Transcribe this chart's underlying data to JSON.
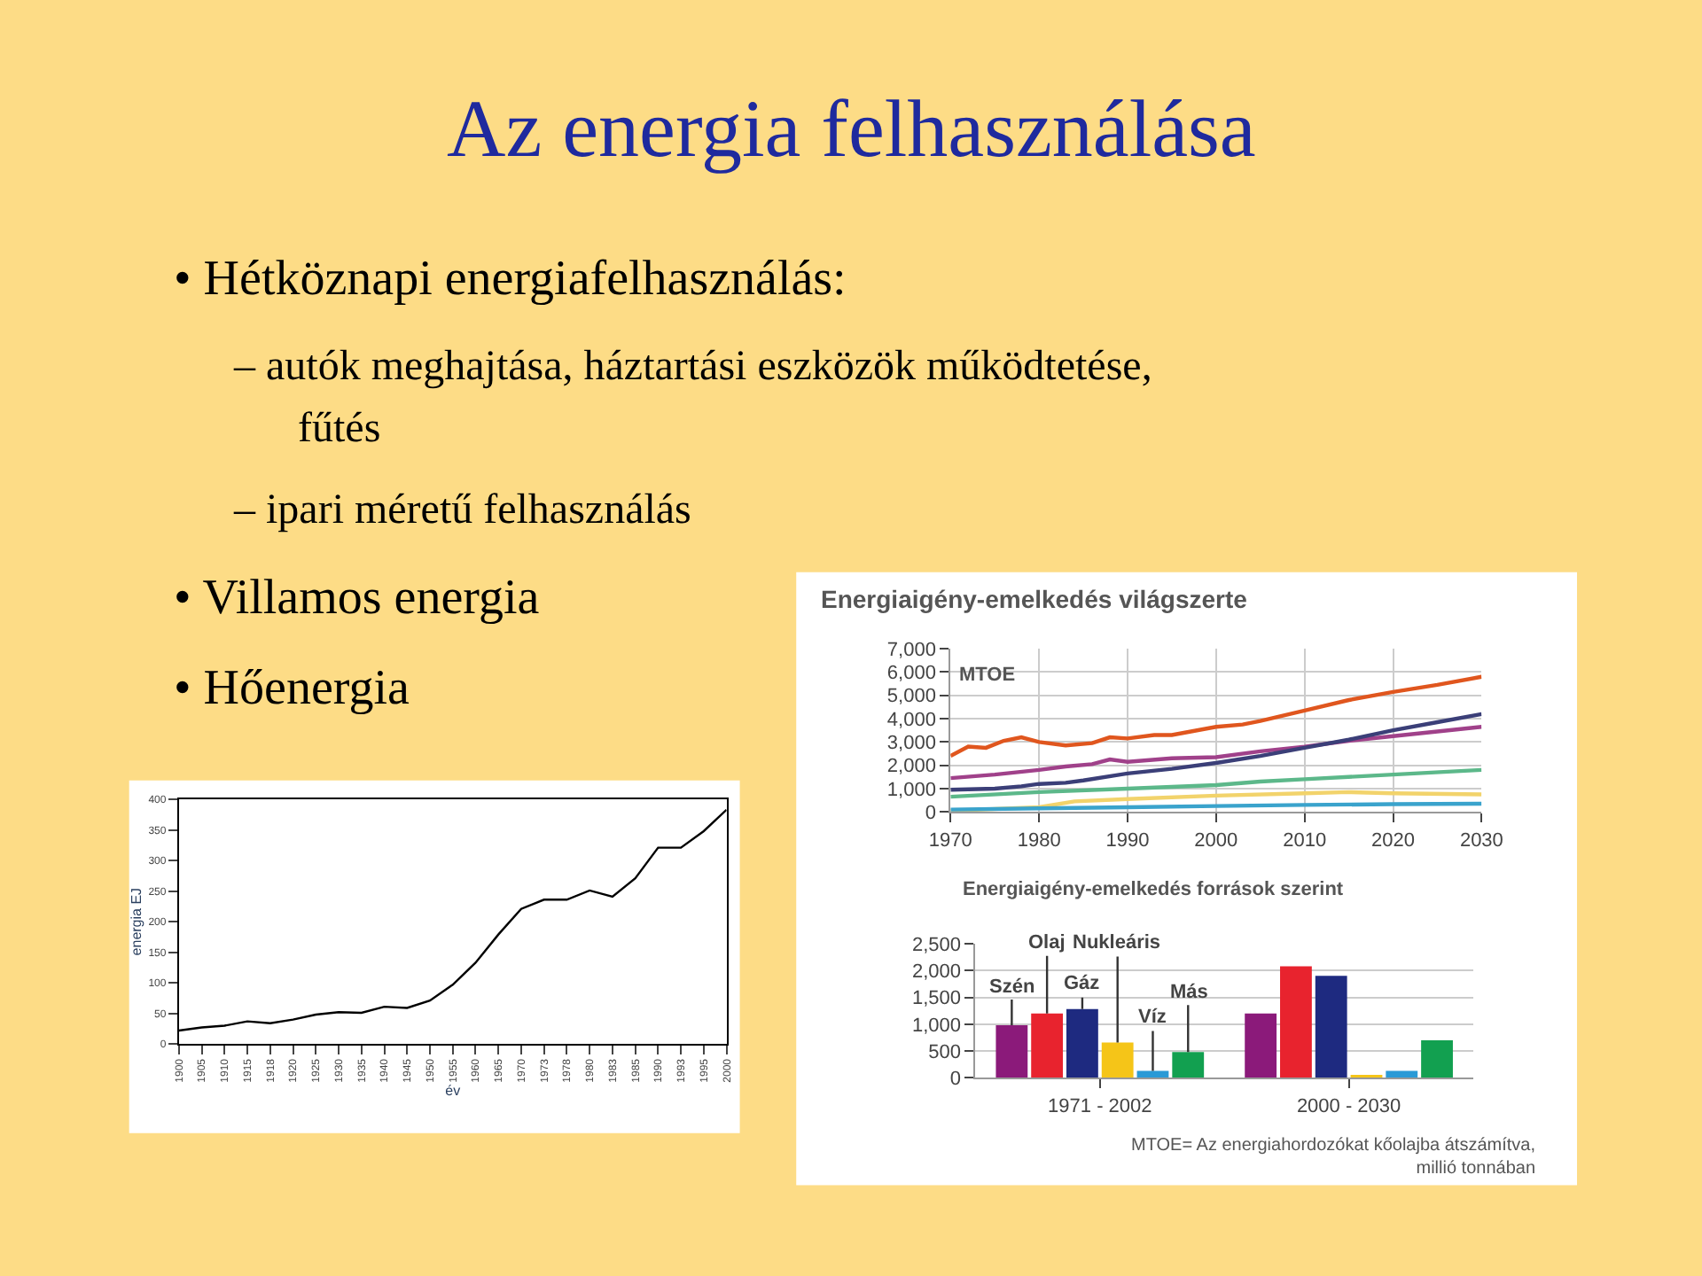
{
  "chart_data": [
    {
      "type": "other",
      "title": "Az energia felhasználása",
      "annotations": [
        "• Hétköznapi energiafelhasználás:",
        "– autók meghajtása, háztartási eszközök működtetése,",
        "fűtés",
        "– ipari méretű felhasználás",
        "• Villamos energia",
        "• Hőenergia"
      ]
    },
    {
      "type": "line",
      "xlabel": "év",
      "ylabel": "energia EJ",
      "categories": [
        "1900",
        "1905",
        "1910",
        "1915",
        "1918",
        "1920",
        "1925",
        "1930",
        "1935",
        "1940",
        "1945",
        "1950",
        "1955",
        "1960",
        "1965",
        "1970",
        "1973",
        "1978",
        "1980",
        "1983",
        "1985",
        "1990",
        "1993",
        "1995",
        "2000"
      ],
      "series": [
        {
          "color": "#000000",
          "values": [
            22,
            27,
            30,
            37,
            34,
            40,
            48,
            52,
            51,
            61,
            59,
            71,
            97,
            133,
            179,
            221,
            236,
            236,
            251,
            241,
            271,
            321,
            321,
            348,
            383
          ]
        }
      ],
      "ylim": [
        0,
        400
      ],
      "yticks": [
        0,
        50,
        100,
        150,
        200,
        250,
        300,
        350,
        400
      ],
      "grid": false
    },
    {
      "type": "line",
      "title": "Energiaigény-emelkedés világszerte",
      "annotations": [
        "MTOE"
      ],
      "xlim": [
        1970,
        2030
      ],
      "xticks": [
        1970,
        1980,
        1990,
        2000,
        2010,
        2020,
        2030
      ],
      "ylim": [
        0,
        7000
      ],
      "yticks": [
        {
          "value": 0,
          "label": "0"
        },
        {
          "value": 1000,
          "label": "1,000"
        },
        {
          "value": 2000,
          "label": "2,000"
        },
        {
          "value": 3000,
          "label": "3,000"
        },
        {
          "value": 4000,
          "label": "4,000"
        },
        {
          "value": 5000,
          "label": "5,000"
        },
        {
          "value": 6000,
          "label": "6,000"
        },
        {
          "value": 7000,
          "label": "7,000"
        }
      ],
      "grid": true,
      "series": [
        {
          "color": "#e0561e",
          "x": [
            1970,
            1972,
            1974,
            1976,
            1978,
            1980,
            1983,
            1986,
            1988,
            1990,
            1993,
            1995,
            2000,
            2003,
            2005,
            2010,
            2015,
            2020,
            2025,
            2030
          ],
          "values": [
            2400,
            2800,
            2750,
            3050,
            3200,
            3000,
            2850,
            2950,
            3200,
            3150,
            3300,
            3300,
            3650,
            3750,
            3900,
            4350,
            4800,
            5150,
            5450,
            5800
          ]
        },
        {
          "color": "#a0418a",
          "x": [
            1970,
            1975,
            1980,
            1983,
            1986,
            1988,
            1990,
            1995,
            2000,
            2005,
            2010,
            2015,
            2020,
            2025,
            2030
          ],
          "values": [
            1450,
            1600,
            1800,
            1950,
            2050,
            2250,
            2150,
            2300,
            2350,
            2600,
            2800,
            3050,
            3250,
            3450,
            3650
          ]
        },
        {
          "color": "#3b3f78",
          "x": [
            1970,
            1975,
            1978,
            1980,
            1983,
            1985,
            1990,
            1995,
            2000,
            2005,
            2010,
            2015,
            2020,
            2025,
            2030
          ],
          "values": [
            950,
            1000,
            1100,
            1200,
            1250,
            1350,
            1650,
            1850,
            2100,
            2400,
            2750,
            3100,
            3500,
            3850,
            4200
          ]
        },
        {
          "color": "#5cb88a",
          "x": [
            1970,
            1980,
            1990,
            2000,
            2005,
            2010,
            2020,
            2030
          ],
          "values": [
            650,
            850,
            1000,
            1150,
            1300,
            1400,
            1600,
            1800
          ]
        },
        {
          "color": "#f2d36b",
          "x": [
            1970,
            1980,
            1984,
            1990,
            2000,
            2010,
            2015,
            2020,
            2030
          ],
          "values": [
            50,
            200,
            450,
            550,
            700,
            800,
            850,
            800,
            750
          ]
        },
        {
          "color": "#3aa3cc",
          "x": [
            1970,
            1980,
            1990,
            2000,
            2010,
            2020,
            2030
          ],
          "values": [
            100,
            150,
            200,
            250,
            300,
            330,
            350
          ]
        }
      ]
    },
    {
      "type": "bar",
      "title": "Energiaigény-emelkedés források szerint",
      "annotations": [
        "MTOE= Az energiahordozókat kőolajba átszámítva,\nmillió tonnában"
      ],
      "categories": [
        "1971 - 2002",
        "2000 - 2030"
      ],
      "ylim": [
        0,
        2500
      ],
      "yticks": [
        {
          "value": 0,
          "label": "0"
        },
        {
          "value": 500,
          "label": "500"
        },
        {
          "value": 1000,
          "label": "1,000"
        },
        {
          "value": 1500,
          "label": "1,500"
        },
        {
          "value": 2000,
          "label": "2,000"
        },
        {
          "value": 2500,
          "label": "2,500"
        }
      ],
      "grid": "y",
      "series": [
        {
          "name": "Szén",
          "color": "#8b1a7a",
          "values": [
            980,
            1200
          ]
        },
        {
          "name": "Olaj",
          "color": "#e8232e",
          "values": [
            1200,
            2080
          ]
        },
        {
          "name": "Gáz",
          "color": "#1e2a80",
          "values": [
            1280,
            1900
          ]
        },
        {
          "name": "Nukleáris",
          "color": "#f5c518",
          "values": [
            660,
            50
          ]
        },
        {
          "name": "Víz",
          "color": "#2a9ad6",
          "values": [
            130,
            130
          ]
        },
        {
          "name": "Más",
          "color": "#12a050",
          "values": [
            480,
            700
          ]
        }
      ]
    }
  ]
}
